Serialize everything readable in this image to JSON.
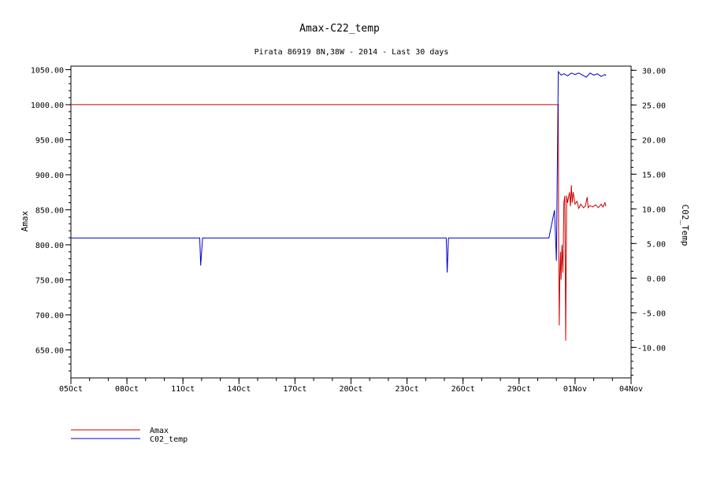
{
  "chart_data": {
    "type": "line",
    "title": "Amax-C22_temp",
    "subtitle": "Pirata 86919 8N,38W - 2014 - Last 30 days",
    "xlabel": "",
    "ylabel": "Amax",
    "y2label": "C02_Temp",
    "x_ticks": [
      "05Oct",
      "08Oct",
      "11Oct",
      "14Oct",
      "17Oct",
      "20Oct",
      "23Oct",
      "26Oct",
      "29Oct",
      "01Nov",
      "04Nov"
    ],
    "x_tick_days": [
      0,
      3,
      6,
      9,
      12,
      15,
      18,
      21,
      24,
      27,
      30
    ],
    "xlim_days": [
      0,
      30
    ],
    "ylim": [
      610,
      1055
    ],
    "y_ticks": [
      "650.00",
      "700.00",
      "750.00",
      "800.00",
      "850.00",
      "900.00",
      "950.00",
      "1000.00",
      "1050.00"
    ],
    "y2lim": [
      -14.4,
      30.6
    ],
    "y2_ticks": [
      "-10.00",
      "-5.00",
      "0.00",
      "5.00",
      "10.00",
      "15.00",
      "20.00",
      "25.00",
      "30.00"
    ],
    "grid": false,
    "legend_position": "bottom-left",
    "series": [
      {
        "name": "Amax",
        "axis": "left",
        "color": "#cc0000",
        "points": [
          [
            0,
            1000
          ],
          [
            26.1,
            1000
          ],
          [
            26.12,
            815
          ],
          [
            26.15,
            685
          ],
          [
            26.18,
            750
          ],
          [
            26.22,
            790
          ],
          [
            26.25,
            750
          ],
          [
            26.3,
            800
          ],
          [
            26.35,
            760
          ],
          [
            26.4,
            860
          ],
          [
            26.45,
            870
          ],
          [
            26.5,
            663
          ],
          [
            26.55,
            870
          ],
          [
            26.6,
            860
          ],
          [
            26.7,
            875
          ],
          [
            26.75,
            855
          ],
          [
            26.8,
            885
          ],
          [
            26.85,
            860
          ],
          [
            26.9,
            875
          ],
          [
            27.0,
            858
          ],
          [
            27.1,
            862
          ],
          [
            27.2,
            852
          ],
          [
            27.3,
            858
          ],
          [
            27.45,
            853
          ],
          [
            27.55,
            855
          ],
          [
            27.65,
            868
          ],
          [
            27.7,
            853
          ],
          [
            27.8,
            856
          ],
          [
            27.95,
            854
          ],
          [
            28.1,
            857
          ],
          [
            28.25,
            853
          ],
          [
            28.4,
            858
          ],
          [
            28.5,
            854
          ],
          [
            28.6,
            860
          ],
          [
            28.65,
            855
          ]
        ]
      },
      {
        "name": "C02_temp",
        "axis": "right",
        "color": "#0000cc",
        "points": [
          [
            0,
            5.8
          ],
          [
            6.9,
            5.8
          ],
          [
            6.95,
            1.8
          ],
          [
            7.05,
            5.8
          ],
          [
            20.1,
            5.8
          ],
          [
            20.15,
            0.8
          ],
          [
            20.22,
            5.8
          ],
          [
            25.6,
            5.8
          ],
          [
            25.9,
            9.8
          ],
          [
            26.0,
            2.5
          ],
          [
            26.1,
            29.8
          ],
          [
            26.25,
            29.3
          ],
          [
            26.4,
            29.5
          ],
          [
            26.6,
            29.2
          ],
          [
            26.8,
            29.6
          ],
          [
            27.0,
            29.4
          ],
          [
            27.2,
            29.6
          ],
          [
            27.4,
            29.3
          ],
          [
            27.6,
            29.0
          ],
          [
            27.8,
            29.6
          ],
          [
            28.0,
            29.3
          ],
          [
            28.2,
            29.5
          ],
          [
            28.4,
            29.1
          ],
          [
            28.6,
            29.4
          ],
          [
            28.65,
            29.2
          ]
        ]
      }
    ]
  }
}
